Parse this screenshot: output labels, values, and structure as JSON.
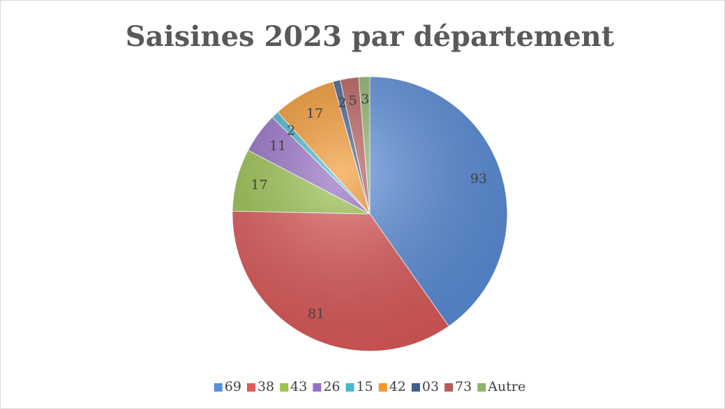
{
  "chart_data": {
    "type": "pie",
    "title": "Saisines 2023 par département",
    "categories": [
      "69",
      "38",
      "43",
      "26",
      "15",
      "42",
      "03",
      "73",
      "Autre"
    ],
    "values": [
      93,
      81,
      17,
      11,
      2,
      17,
      2,
      5,
      3
    ],
    "colors": [
      "#5b8fdc",
      "#e05a5a",
      "#9bc44f",
      "#9670c8",
      "#45b8cf",
      "#f5972e",
      "#3e5f8f",
      "#b85c5a",
      "#8fb46a"
    ],
    "legend": "bottom"
  }
}
